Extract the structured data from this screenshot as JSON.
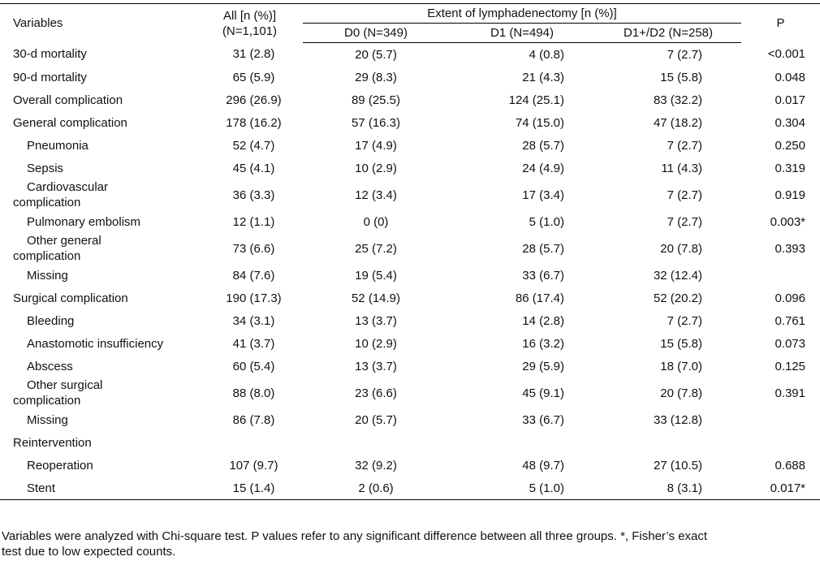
{
  "header": {
    "variables": "Variables",
    "all_line1": "All [n (%)]",
    "all_line2": "(N=1,101)",
    "extent": "Extent of lymphadenectomy [n (%)]",
    "d0": "D0 (N=349)",
    "d1": "D1 (N=494)",
    "d2": "D1+/D2 (N=258)",
    "p": "P"
  },
  "rows": [
    {
      "label": "30-d mortality",
      "all": "31 (2.8)",
      "d0": "20 (5.7)",
      "d1": "4 (0.8)",
      "d2": "7 (2.7)",
      "p": "<0.001"
    },
    {
      "label": "90-d mortality",
      "all": "65 (5.9)",
      "d0": "29 (8.3)",
      "d1": "21 (4.3)",
      "d2": "15 (5.8)",
      "p": "0.048"
    },
    {
      "label": "Overall complication",
      "all": "296 (26.9)",
      "d0": "89 (25.5)",
      "d1": "124 (25.1)",
      "d2": "83 (32.2)",
      "p": "0.017"
    },
    {
      "label": "General complication",
      "all": "178 (16.2)",
      "d0": "57 (16.3)",
      "d1": "74 (15.0)",
      "d2": "47 (18.2)",
      "p": "0.304"
    },
    {
      "label": "Pneumonia",
      "all": "52 (4.7)",
      "d0": "17 (4.9)",
      "d1": "28 (5.7)",
      "d2": "7 (2.7)",
      "p": "0.250"
    },
    {
      "label": "Sepsis",
      "all": "45 (4.1)",
      "d0": "10 (2.9)",
      "d1": "24 (4.9)",
      "d2": "11 (4.3)",
      "p": "0.319"
    },
    {
      "label1": "Cardiovascular",
      "label2": "complication",
      "all": "36 (3.3)",
      "d0": "12 (3.4)",
      "d1": "17 (3.4)",
      "d2": "7 (2.7)",
      "p": "0.919"
    },
    {
      "label": "Pulmonary embolism",
      "all": "12 (1.1)",
      "d0": "0 (0)",
      "d1": "5 (1.0)",
      "d2": "7 (2.7)",
      "p": "0.003*"
    },
    {
      "label1": "Other general",
      "label2": "complication",
      "all": "73 (6.6)",
      "d0": "25 (7.2)",
      "d1": "28 (5.7)",
      "d2": "20 (7.8)",
      "p": "0.393"
    },
    {
      "label": "Missing",
      "all": "84 (7.6)",
      "d0": "19 (5.4)",
      "d1": "33 (6.7)",
      "d2": "32 (12.4)",
      "p": ""
    },
    {
      "label": "Surgical complication",
      "all": "190 (17.3)",
      "d0": "52 (14.9)",
      "d1": "86 (17.4)",
      "d2": "52 (20.2)",
      "p": "0.096"
    },
    {
      "label": "Bleeding",
      "all": "34 (3.1)",
      "d0": "13 (3.7)",
      "d1": "14 (2.8)",
      "d2": "7 (2.7)",
      "p": "0.761"
    },
    {
      "label": "Anastomotic insufficiency",
      "all": "41 (3.7)",
      "d0": "10 (2.9)",
      "d1": "16 (3.2)",
      "d2": "15 (5.8)",
      "p": "0.073"
    },
    {
      "label": "Abscess",
      "all": "60 (5.4)",
      "d0": "13 (3.7)",
      "d1": "29 (5.9)",
      "d2": "18 (7.0)",
      "p": "0.125"
    },
    {
      "label1": "Other surgical",
      "label2": "complication",
      "all": "88 (8.0)",
      "d0": "23 (6.6)",
      "d1": "45 (9.1)",
      "d2": "20 (7.8)",
      "p": "0.391"
    },
    {
      "label": "Missing",
      "all": "86 (7.8)",
      "d0": "20 (5.7)",
      "d1": "33 (6.7)",
      "d2": "33 (12.8)",
      "p": ""
    },
    {
      "label": "Reintervention",
      "all": "",
      "d0": "",
      "d1": "",
      "d2": "",
      "p": ""
    },
    {
      "label": "Reoperation",
      "all": "107 (9.7)",
      "d0": "32 (9.2)",
      "d1": "48 (9.7)",
      "d2": "27 (10.5)",
      "p": "0.688"
    },
    {
      "label": "Stent",
      "all": "15 (1.4)",
      "d0": "2 (0.6)",
      "d1": "5 (1.0)",
      "d2": "8 (3.1)",
      "p": "0.017*"
    }
  ],
  "footnote_line1": "Variables were analyzed with Chi-square test. P values refer to any significant difference between all three groups. *, Fisher’s exact",
  "footnote_line2": "test due to low expected counts."
}
